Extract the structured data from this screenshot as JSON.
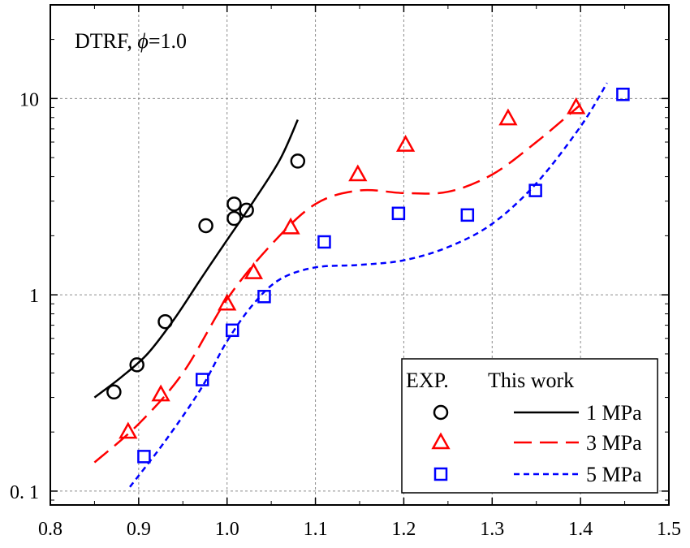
{
  "chart_data": {
    "type": "scatter",
    "annotation": "DTRF, ϕ=1.0",
    "xlabel": "",
    "ylabel": "",
    "xlim": [
      0.8,
      1.5
    ],
    "ylim": [
      0.085,
      30
    ],
    "y_scale": "log",
    "x_ticks": [
      "0.8",
      "0.9",
      "1.0",
      "1.1",
      "1.2",
      "1.3",
      "1.4",
      "1.5"
    ],
    "x_tick_values": [
      0.8,
      0.9,
      1.0,
      1.1,
      1.2,
      1.3,
      1.4,
      1.5
    ],
    "y_ticks": [
      "0. 1",
      "1",
      "10"
    ],
    "y_tick_values": [
      0.1,
      1,
      10
    ],
    "grid": true,
    "legend": {
      "placement": "bottom-right",
      "header_exp": "EXP.",
      "header_model": "This work"
    },
    "series": [
      {
        "name": "1 MPa",
        "color": "#000000",
        "marker": "circle",
        "line_style": "solid",
        "exp_points": [
          [
            0.872,
            0.32
          ],
          [
            0.898,
            0.44
          ],
          [
            0.93,
            0.73
          ],
          [
            0.976,
            2.25
          ],
          [
            1.008,
            2.9
          ],
          [
            1.008,
            2.45
          ],
          [
            1.022,
            2.7
          ],
          [
            1.08,
            4.8
          ]
        ],
        "model_line": [
          [
            0.85,
            0.3
          ],
          [
            0.88,
            0.38
          ],
          [
            0.91,
            0.5
          ],
          [
            0.94,
            0.75
          ],
          [
            0.97,
            1.2
          ],
          [
            1.0,
            1.9
          ],
          [
            1.03,
            3.0
          ],
          [
            1.06,
            4.9
          ],
          [
            1.08,
            7.8
          ]
        ]
      },
      {
        "name": "3 MPa",
        "color": "#ff0000",
        "marker": "triangle",
        "line_style": "dashed",
        "exp_points": [
          [
            0.888,
            0.2
          ],
          [
            0.925,
            0.31
          ],
          [
            1.0,
            0.9
          ],
          [
            1.03,
            1.3
          ],
          [
            1.072,
            2.2
          ],
          [
            1.148,
            4.1
          ],
          [
            1.202,
            5.8
          ],
          [
            1.318,
            7.9
          ],
          [
            1.395,
            9.0
          ]
        ],
        "model_line": [
          [
            0.85,
            0.14
          ],
          [
            0.9,
            0.22
          ],
          [
            0.95,
            0.4
          ],
          [
            1.0,
            0.95
          ],
          [
            1.05,
            1.8
          ],
          [
            1.1,
            2.9
          ],
          [
            1.15,
            3.4
          ],
          [
            1.2,
            3.3
          ],
          [
            1.25,
            3.35
          ],
          [
            1.3,
            4.1
          ],
          [
            1.35,
            6.0
          ],
          [
            1.4,
            9.3
          ]
        ]
      },
      {
        "name": "5 MPa",
        "color": "#0000ff",
        "marker": "square",
        "line_style": "dotted",
        "exp_points": [
          [
            0.906,
            0.15
          ],
          [
            0.972,
            0.37
          ],
          [
            1.006,
            0.66
          ],
          [
            1.042,
            0.98
          ],
          [
            1.11,
            1.86
          ],
          [
            1.194,
            2.6
          ],
          [
            1.272,
            2.55
          ],
          [
            1.349,
            3.4
          ],
          [
            1.448,
            10.5
          ]
        ],
        "model_line": [
          [
            0.89,
            0.105
          ],
          [
            0.93,
            0.18
          ],
          [
            0.97,
            0.33
          ],
          [
            1.0,
            0.58
          ],
          [
            1.03,
            0.9
          ],
          [
            1.06,
            1.2
          ],
          [
            1.1,
            1.38
          ],
          [
            1.15,
            1.42
          ],
          [
            1.2,
            1.5
          ],
          [
            1.25,
            1.75
          ],
          [
            1.3,
            2.3
          ],
          [
            1.35,
            3.7
          ],
          [
            1.4,
            7.2
          ],
          [
            1.43,
            12.0
          ]
        ]
      }
    ]
  }
}
